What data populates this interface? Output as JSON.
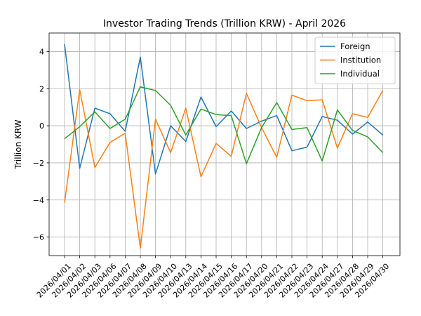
{
  "chart_data": {
    "type": "line",
    "title": "Investor Trading Trends (Trillion KRW) - April 2026",
    "xlabel": "",
    "ylabel": "Trillion KRW",
    "ylim": [
      -7.0,
      5.0
    ],
    "yticks": [
      -6,
      -4,
      -2,
      0,
      2,
      4
    ],
    "ytick_labels": [
      "−6",
      "−4",
      "−2",
      "0",
      "2",
      "4"
    ],
    "grid": true,
    "legend_position": "top-right",
    "categories": [
      "2026/04/01",
      "2026/04/02",
      "2026/04/03",
      "2026/04/06",
      "2026/04/07",
      "2026/04/08",
      "2026/04/09",
      "2026/04/10",
      "2026/04/13",
      "2026/04/14",
      "2026/04/15",
      "2026/04/16",
      "2026/04/17",
      "2026/04/20",
      "2026/04/21",
      "2026/04/22",
      "2026/04/23",
      "2026/04/24",
      "2026/04/27",
      "2026/04/28",
      "2026/04/29",
      "2026/04/30"
    ],
    "series": [
      {
        "name": "Foreign",
        "color": "#1f77b4",
        "values": [
          4.4,
          -2.3,
          0.95,
          0.65,
          -0.3,
          3.7,
          -2.6,
          0.0,
          -0.85,
          1.55,
          -0.05,
          0.8,
          -0.15,
          0.25,
          0.55,
          -1.35,
          -1.15,
          0.5,
          0.3,
          -0.45,
          0.2,
          -0.5
        ]
      },
      {
        "name": "Institution",
        "color": "#ff7f0e",
        "values": [
          -4.15,
          1.95,
          -2.25,
          -0.9,
          -0.4,
          -6.6,
          0.35,
          -1.45,
          0.95,
          -2.75,
          -0.95,
          -1.65,
          1.75,
          -0.1,
          -1.7,
          1.65,
          1.35,
          1.4,
          -1.2,
          0.65,
          0.45,
          1.9
        ]
      },
      {
        "name": "Individual",
        "color": "#2ca02c",
        "values": [
          -0.7,
          -0.05,
          0.75,
          -0.15,
          0.35,
          2.1,
          1.9,
          1.1,
          -0.5,
          0.9,
          0.6,
          0.55,
          -2.05,
          -0.1,
          1.25,
          -0.2,
          -0.1,
          -1.9,
          0.85,
          -0.25,
          -0.6,
          -1.45
        ]
      }
    ]
  }
}
